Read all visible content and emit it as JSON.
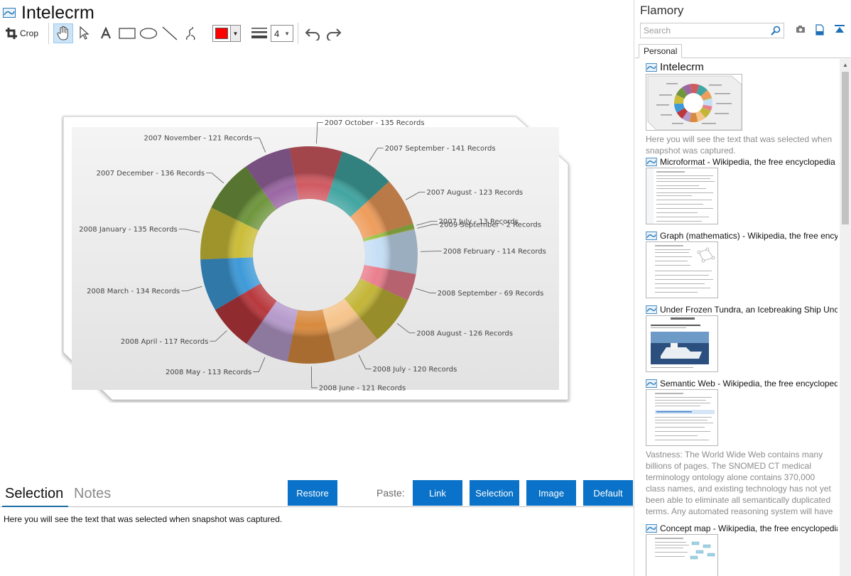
{
  "document": {
    "title": "Intelecrm"
  },
  "toolbar": {
    "crop_label": "Crop",
    "line_width": "4",
    "stroke_color": "#ff0000",
    "tools": [
      "crop-icon",
      "hand-icon",
      "pointer-icon",
      "text-icon",
      "rectangle-icon",
      "ellipse-icon",
      "line-icon",
      "freehand-icon",
      "line-width-icon",
      "undo-icon",
      "redo-icon"
    ]
  },
  "chart_data": {
    "type": "pie",
    "style": "donut",
    "labels": [
      "2007 October - 135 Records",
      "2007 September - 141 Records",
      "2007 August - 123 Records",
      "2007 July - 13 Records",
      "2009 September - 2 Records",
      "2008 February - 114 Records",
      "2008 September - 69 Records",
      "2008 August - 126 Records",
      "2008 July - 120 Records",
      "2008 June - 121 Records",
      "2008 May - 113 Records",
      "2008 April - 117 Records",
      "2008 March - 134 Records",
      "2008 January - 135 Records",
      "2007 December - 136 Records",
      "2007 November - 121 Records"
    ],
    "values": [
      135,
      141,
      123,
      13,
      2,
      114,
      69,
      126,
      120,
      121,
      113,
      117,
      134,
      135,
      136,
      121
    ],
    "colors": [
      "#d05a62",
      "#41a5a1",
      "#ee9d5c",
      "#9dc24a",
      "#c9d36a",
      "#c6dff5",
      "#ea7f8e",
      "#c3b537",
      "#f6c48b",
      "#d88a3e",
      "#b59acb",
      "#b8383d",
      "#3e9ad8",
      "#cbbd39",
      "#6f963e",
      "#9a67a3"
    ]
  },
  "bottom": {
    "tabs": {
      "selection": "Selection",
      "notes": "Notes"
    },
    "restore_label": "Restore",
    "paste_label": "Paste:",
    "paste_buttons": {
      "link": "Link",
      "selection": "Selection",
      "image": "Image",
      "default": "Default"
    },
    "selection_text": "Here you will see the text that was selected when snapshot was captured."
  },
  "sidebar": {
    "title": "Flamory",
    "search_placeholder": "Search",
    "tab_personal": "Personal",
    "items": [
      {
        "title": "Intelecrm",
        "note": "Here you will see the text that was selected when snapshot was captured."
      },
      {
        "title": "Microformat - Wikipedia, the free encyclopedia"
      },
      {
        "title": "Graph (mathematics) - Wikipedia, the free ency"
      },
      {
        "title": "Under Frozen Tundra, an Icebreaking Ship Unco"
      },
      {
        "title": "Semantic Web - Wikipedia, the free encycloped",
        "note": "Vastness: The World Wide Web contains many billions of pages. The SNOMED CT medical terminology ontology alone contains 370,000 class names, and existing technology has not yet been able to eliminate all semantically duplicated terms. Any automated reasoning system will have to deal with truly huge inputs."
      },
      {
        "title": "Concept map - Wikipedia, the free encyclopedia"
      }
    ]
  }
}
